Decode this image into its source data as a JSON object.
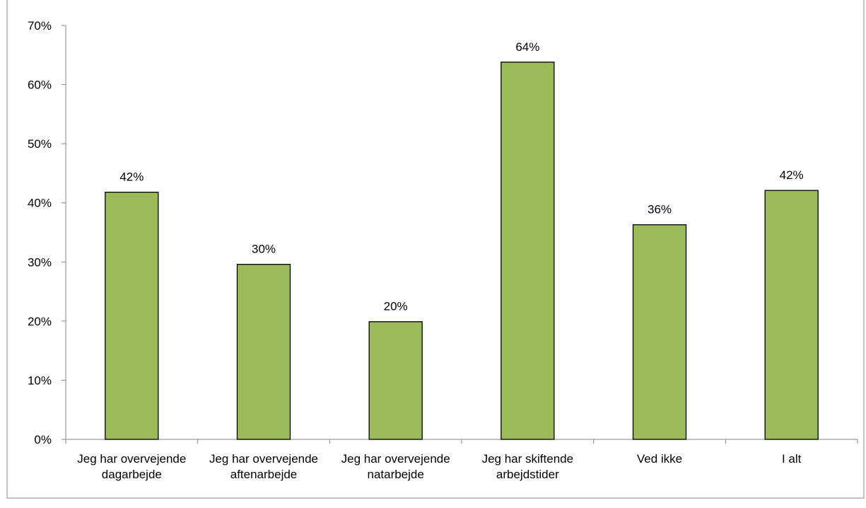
{
  "chart_data": {
    "type": "bar",
    "categories": [
      "Jeg har overvejende\ndagarbejde",
      "Jeg har overvejende\naftenarbejde",
      "Jeg har overvejende\nnatarbejde",
      "Jeg har skiftende\narbejdstider",
      "Ved ikke",
      "I alt"
    ],
    "values": [
      41.8,
      29.6,
      19.9,
      63.8,
      36.3,
      42.1
    ],
    "value_labels": [
      "42%",
      "30%",
      "20%",
      "64%",
      "36%",
      "42%"
    ],
    "color": "#9bbb59",
    "ylim": [
      0,
      70
    ],
    "yticks": [
      {
        "value": 0,
        "label": "0%"
      },
      {
        "value": 10,
        "label": "10%"
      },
      {
        "value": 20,
        "label": "20%"
      },
      {
        "value": 30,
        "label": "30%"
      },
      {
        "value": 40,
        "label": "40%"
      },
      {
        "value": 50,
        "label": "50%"
      },
      {
        "value": 60,
        "label": "60%"
      },
      {
        "value": 70,
        "label": "70%"
      }
    ],
    "grid": false
  }
}
